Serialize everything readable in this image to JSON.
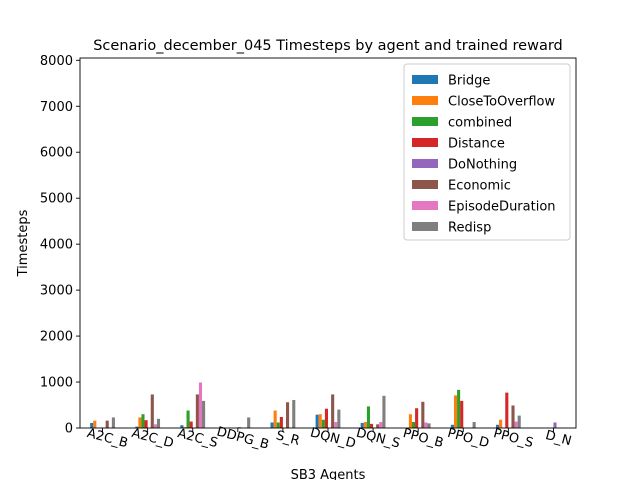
{
  "chart_data": {
    "type": "bar",
    "title": "Scenario_december_045 Timesteps by agent and trained reward",
    "xlabel": "SB3 Agents",
    "ylabel": "Timesteps",
    "ylim": [
      0,
      8050
    ],
    "yticks": [
      0,
      1000,
      2000,
      3000,
      4000,
      5000,
      6000,
      7000,
      8000
    ],
    "grid": false,
    "legend_position": "top-right",
    "categories": [
      "A2C_B",
      "A2C_D",
      "A2C_S",
      "DDPG_B",
      "S_R",
      "DQN_D",
      "DQN_S",
      "PPO_B",
      "PPO_D",
      "PPO_S",
      "D_N"
    ],
    "series": [
      {
        "name": "Bridge",
        "color": "#1f77b4",
        "values": [
          110,
          30,
          60,
          0,
          120,
          290,
          110,
          0,
          70,
          70,
          0
        ]
      },
      {
        "name": "CloseToOverflow",
        "color": "#ff7f0e",
        "values": [
          160,
          230,
          20,
          0,
          380,
          300,
          130,
          300,
          710,
          180,
          0
        ]
      },
      {
        "name": "combined",
        "color": "#2ca02c",
        "values": [
          0,
          300,
          380,
          0,
          120,
          180,
          470,
          130,
          830,
          0,
          0
        ]
      },
      {
        "name": "Distance",
        "color": "#d62728",
        "values": [
          10,
          170,
          140,
          0,
          240,
          420,
          90,
          430,
          590,
          770,
          0
        ]
      },
      {
        "name": "DoNothing",
        "color": "#9467bd",
        "values": [
          0,
          0,
          0,
          20,
          0,
          0,
          0,
          0,
          0,
          0,
          120
        ]
      },
      {
        "name": "Economic",
        "color": "#8c564b",
        "values": [
          160,
          730,
          730,
          0,
          560,
          730,
          80,
          570,
          0,
          490,
          0
        ]
      },
      {
        "name": "EpisodeDuration",
        "color": "#e377c2",
        "values": [
          0,
          80,
          990,
          0,
          0,
          130,
          130,
          120,
          0,
          140,
          0
        ]
      },
      {
        "name": "Redisp",
        "color": "#7f7f7f",
        "values": [
          230,
          200,
          590,
          230,
          610,
          400,
          700,
          100,
          130,
          270,
          0
        ]
      }
    ]
  }
}
